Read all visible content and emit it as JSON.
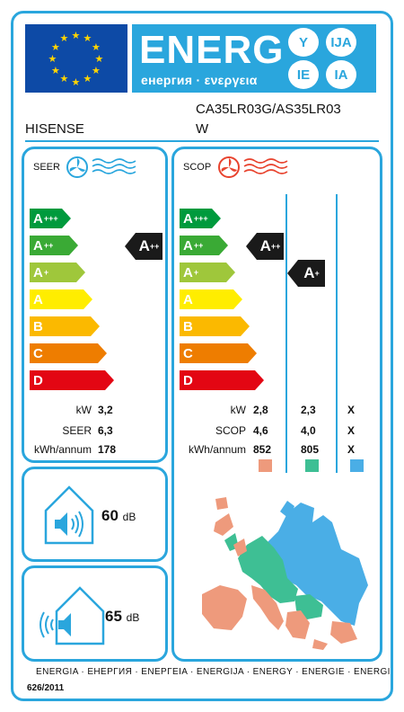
{
  "header": {
    "energy_word": "ENERG",
    "energy_sub": "енергия · ενεργεια",
    "lang_badges": [
      "Y",
      "IJA",
      "IE",
      "IA"
    ]
  },
  "supplier": "HISENSE",
  "model_line1": "CA35LR03G/AS35LR03",
  "model_line2": "W",
  "classes": [
    "A",
    "A",
    "A",
    "A",
    "B",
    "C",
    "D"
  ],
  "class_sups": [
    "+++",
    "++",
    "+",
    "",
    "",
    "",
    ""
  ],
  "class_colors": [
    "#009a3d",
    "#3aaa35",
    "#9fc73b",
    "#ffed00",
    "#fbb900",
    "#ee7d00",
    "#e30613"
  ],
  "seer": {
    "title": "SEER",
    "rating": "A",
    "rating_sup": "++",
    "labels": [
      "kW",
      "SEER",
      "kWh/annum"
    ],
    "values": [
      "3,2",
      "6,3",
      "178"
    ]
  },
  "scop": {
    "title": "SCOP",
    "rating_warm": "A",
    "rating_warm_sup": "++",
    "rating_average": "A",
    "rating_average_sup": "+",
    "labels": [
      "kW",
      "SCOP",
      "kWh/annum"
    ],
    "col1": [
      "2,8",
      "4,6",
      "852"
    ],
    "col2": [
      "2,3",
      "4,0",
      "805"
    ],
    "col3": [
      "X",
      "X",
      "X"
    ],
    "zone_colors": [
      "#ee9a7c",
      "#3ebf94",
      "#4aaee6"
    ]
  },
  "noise": {
    "indoor": "60",
    "outdoor": "65",
    "unit": "dB"
  },
  "footer": {
    "languages": "ENERGIA · ЕНЕРГИЯ · ΕΝΕΡΓΕΙΑ · ENERGIJA · ENERGY · ENERGIE · ENERGI",
    "regulation": "626/2011"
  },
  "icons": [
    "fan-cooling-icon",
    "fan-heating-icon",
    "indoor-speaker-icon",
    "outdoor-speaker-icon",
    "europe-map-icon"
  ]
}
